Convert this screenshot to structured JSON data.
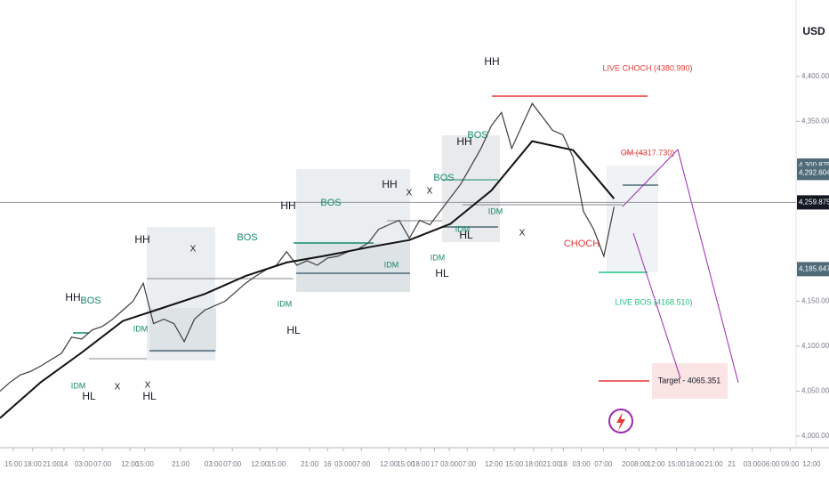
{
  "chart_data": {
    "type": "line",
    "currency": "USD",
    "xlim": [
      0,
      162
    ],
    "ylim": [
      3990,
      4485
    ],
    "xticks": [
      {
        "value": 2.6,
        "label": "15:00"
      },
      {
        "value": 6.4,
        "label": "18:00"
      },
      {
        "value": 10.1,
        "label": "21:00"
      },
      {
        "value": 12.5,
        "label": "14"
      },
      {
        "value": 16.3,
        "label": "03:00"
      },
      {
        "value": 20,
        "label": "07:00"
      },
      {
        "value": 25.4,
        "label": "12:00"
      },
      {
        "value": 28.3,
        "label": "15:00"
      },
      {
        "value": 35.3,
        "label": "21:00"
      },
      {
        "value": 41.7,
        "label": "03:00"
      },
      {
        "value": 45.4,
        "label": "07:00"
      },
      {
        "value": 50.8,
        "label": "12:00"
      },
      {
        "value": 54.1,
        "label": "15:00"
      },
      {
        "value": 60.5,
        "label": "21:00"
      },
      {
        "value": 64,
        "label": "16"
      },
      {
        "value": 67.1,
        "label": "03:00"
      },
      {
        "value": 70.6,
        "label": "07:00"
      },
      {
        "value": 76,
        "label": "12:00"
      },
      {
        "value": 79.3,
        "label": "15:00"
      },
      {
        "value": 82.2,
        "label": "18:00"
      },
      {
        "value": 84.9,
        "label": "17"
      },
      {
        "value": 87.8,
        "label": "03:00"
      },
      {
        "value": 91.3,
        "label": "07:00"
      },
      {
        "value": 96.5,
        "label": "12:00"
      },
      {
        "value": 100.5,
        "label": "15:00"
      },
      {
        "value": 104.3,
        "label": "18:00"
      },
      {
        "value": 107.8,
        "label": "21:00"
      },
      {
        "value": 110.1,
        "label": "18"
      },
      {
        "value": 113.6,
        "label": "03:00"
      },
      {
        "value": 117.9,
        "label": "07:00"
      },
      {
        "value": 122.3,
        "label": "20"
      },
      {
        "value": 124.9,
        "label": "08:00"
      },
      {
        "value": 128.2,
        "label": "12:00"
      },
      {
        "value": 132.2,
        "label": "15:00"
      },
      {
        "value": 135.8,
        "label": "18:00"
      },
      {
        "value": 139.5,
        "label": "21:00"
      },
      {
        "value": 143,
        "label": "21"
      },
      {
        "value": 147,
        "label": "03:00"
      },
      {
        "value": 150.6,
        "label": "06:00"
      },
      {
        "value": 154.4,
        "label": "09:00"
      },
      {
        "value": 158.6,
        "label": "12:00"
      }
    ],
    "yticks": [
      {
        "value": 4400,
        "label": "4,400.000"
      },
      {
        "value": 4350,
        "label": "4,350.000"
      },
      {
        "value": 4150,
        "label": "4,150.000"
      },
      {
        "value": 4100,
        "label": "4,100.000"
      },
      {
        "value": 4050,
        "label": "4,050.000"
      },
      {
        "value": 4000,
        "label": "4,000.000"
      }
    ],
    "price_markers": [
      {
        "value": 4300.875,
        "label": "4,300.875",
        "color": "#4f6a78"
      },
      {
        "value": 4292.604,
        "label": "4,292.604",
        "color": "#4f6a78"
      },
      {
        "value": 4259.875,
        "label": "4,259.875",
        "color": "#131722"
      },
      {
        "value": 4185.647,
        "label": "4,185.647",
        "color": "#4f6a78"
      }
    ],
    "series": [
      {
        "name": "Price",
        "color": "#3c3c3c",
        "x": [
          0,
          2,
          4,
          6,
          8,
          10,
          12,
          14,
          16,
          18,
          20,
          22,
          24,
          26,
          28,
          30,
          32,
          34,
          36,
          38,
          40,
          42,
          44,
          46,
          48,
          50,
          52,
          54,
          56,
          58,
          60,
          62,
          64,
          66,
          68,
          70,
          72,
          74,
          76,
          78,
          80,
          82,
          84,
          86,
          88,
          90,
          92,
          94,
          96,
          98,
          100,
          102,
          104,
          106,
          108,
          110,
          112,
          114,
          116,
          118,
          120
        ],
        "values": [
          4050,
          4060,
          4068,
          4072,
          4078,
          4085,
          4092,
          4110,
          4108,
          4118,
          4122,
          4130,
          4140,
          4150,
          4170,
          4125,
          4130,
          4125,
          4105,
          4130,
          4140,
          4145,
          4150,
          4160,
          4170,
          4178,
          4185,
          4190,
          4205,
          4190,
          4195,
          4190,
          4198,
          4200,
          4205,
          4208,
          4215,
          4230,
          4235,
          4240,
          4220,
          4240,
          4235,
          4250,
          4265,
          4280,
          4300,
          4320,
          4345,
          4360,
          4320,
          4345,
          4370,
          4355,
          4340,
          4335,
          4310,
          4250,
          4230,
          4200,
          4255
        ]
      },
      {
        "name": "MA",
        "color": "#111111",
        "x": [
          0,
          8,
          16,
          24,
          32,
          40,
          48,
          56,
          64,
          72,
          80,
          88,
          96,
          104,
          112,
          120
        ],
        "values": [
          4020,
          4060,
          4093,
          4128,
          4143,
          4158,
          4178,
          4193,
          4201,
          4210,
          4218,
          4236,
          4273,
          4328,
          4318,
          4264
        ]
      }
    ],
    "annotations": [
      "HH",
      "LIVE CHOCH (4380.990)",
      "HH",
      "BOS",
      "HH",
      "X",
      "BOS",
      "HH",
      "BOS",
      "HH",
      "X",
      "X",
      "BOS",
      "HH",
      "BOS",
      "HL",
      "HL",
      "HL",
      "HL",
      "HL",
      "X",
      "X",
      "X",
      "IDM",
      "IDM",
      "IDM",
      "IDM",
      "IDM",
      "IDM",
      "IDM",
      "CHOCH",
      "OM (4317.730)",
      "LIVE BOS (4168.510)",
      "Target - 4065.351"
    ]
  }
}
